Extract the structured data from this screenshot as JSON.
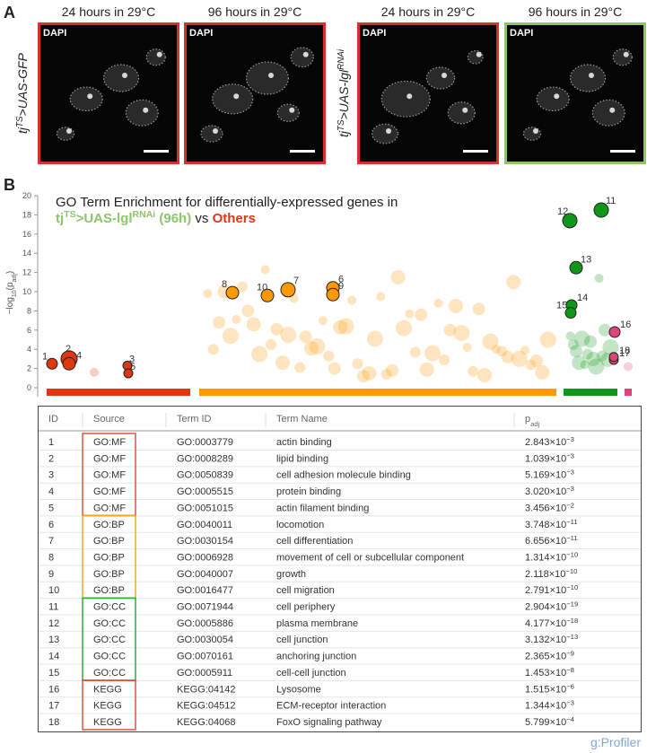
{
  "panel_a": {
    "label": "A",
    "column_headers": [
      "24 hours in 29°C",
      "96 hours in 29°C",
      "24 hours in 29°C",
      "96 hours in 29°C"
    ],
    "image_label": "DAPI",
    "row_labels": [
      {
        "base": "tj",
        "sup": "TS",
        "rest": ">UAS-GFP"
      },
      {
        "base": "tj",
        "sup": "TS",
        "rest": ">UAS-lgl",
        "sup2": "RNAi"
      }
    ]
  },
  "panel_b_label": "B",
  "chart_data": {
    "type": "scatter",
    "title": "GO Term Enrichment for differentially-expressed genes in",
    "subtitle": {
      "group": "tj",
      "group_sup": "TS",
      "group_rest": ">UAS-lgl",
      "group_sup2": "RNAi",
      "group_tail": " (96h)",
      "vs": " vs ",
      "others": "Others"
    },
    "y_label": {
      "main": "−log",
      "sub": "10",
      "open": "(p",
      "sub2": "adj",
      "close": ")"
    },
    "ylim": [
      0,
      20
    ],
    "yticks": [
      0,
      2,
      4,
      6,
      8,
      10,
      12,
      14,
      16,
      18,
      20
    ],
    "groups": [
      {
        "color": "#dc3912",
        "highlight_values": [
          2.5,
          3.0,
          2.3,
          2.5,
          1.5
        ],
        "values": [
          1.6
        ]
      },
      {
        "color": "#ff9900",
        "highlight_values": [
          10.4,
          10.2,
          9.9,
          9.7,
          9.6
        ],
        "values": [
          9.8,
          7.6,
          5.5,
          3.8,
          1.5,
          7.1,
          6,
          4.3,
          2.4,
          11.5,
          12.3,
          8.2,
          6.4,
          4,
          1.9,
          9.3,
          3.2,
          5.1,
          10.5,
          8.5,
          7,
          2.8,
          6.2,
          4.5,
          1.3,
          9.1,
          6.8,
          3.6,
          2.1,
          11,
          9.5,
          8,
          5.7,
          3.3,
          1.6,
          7.7,
          6.1,
          4.8,
          2.5,
          10,
          8.8,
          5.3,
          3,
          1.4,
          6.6,
          4.2,
          2,
          5,
          3.7,
          2.6,
          4,
          1.2,
          5.4,
          2.9,
          4.1,
          3.9,
          1.8,
          3.5,
          1.7,
          6.3
        ]
      },
      {
        "color": "#109618",
        "highlight_values": [
          18.5,
          17.4,
          12.5,
          8.6,
          7.8
        ],
        "values": [
          5.4,
          4.8,
          4.2,
          3.5,
          2.9,
          2.4,
          6,
          5.1,
          3.3,
          2.6,
          11.4,
          3.8,
          2.2,
          4.5,
          3
        ]
      },
      {
        "color": "#dd4477",
        "highlight_values": [
          5.8,
          2.9,
          3.2
        ],
        "values": [
          2.2
        ]
      }
    ]
  },
  "table": {
    "header": [
      "ID",
      "Source",
      "Term ID",
      "Term Name"
    ],
    "padj_header": {
      "main": "p",
      "sub": "adj"
    },
    "rows": [
      [
        "1",
        "GO:MF",
        "GO:0003779",
        "actin binding",
        "2.843×10",
        "−3"
      ],
      [
        "2",
        "GO:MF",
        "GO:0008289",
        "lipid binding",
        "1.039×10",
        "−3"
      ],
      [
        "3",
        "GO:MF",
        "GO:0050839",
        "cell adhesion molecule binding",
        "5.169×10",
        "−3"
      ],
      [
        "4",
        "GO:MF",
        "GO:0005515",
        "protein binding",
        "3.020×10",
        "−3"
      ],
      [
        "5",
        "GO:MF",
        "GO:0051015",
        "actin filament binding",
        "3.456×10",
        "−2"
      ],
      [
        "6",
        "GO:BP",
        "GO:0040011",
        "locomotion",
        "3.748×10",
        "−11"
      ],
      [
        "7",
        "GO:BP",
        "GO:0030154",
        "cell differentiation",
        "6.656×10",
        "−11"
      ],
      [
        "8",
        "GO:BP",
        "GO:0006928",
        "movement of cell or subcellular component",
        "1.314×10",
        "−10"
      ],
      [
        "9",
        "GO:BP",
        "GO:0040007",
        "growth",
        "2.118×10",
        "−10"
      ],
      [
        "10",
        "GO:BP",
        "GO:0016477",
        "cell migration",
        "2.791×10",
        "−10"
      ],
      [
        "11",
        "GO:CC",
        "GO:0071944",
        "cell periphery",
        "2.904×10",
        "−19"
      ],
      [
        "12",
        "GO:CC",
        "GO:0005886",
        "plasma membrane",
        "4.177×10",
        "−18"
      ],
      [
        "13",
        "GO:CC",
        "GO:0030054",
        "cell junction",
        "3.132×10",
        "−13"
      ],
      [
        "14",
        "GO:CC",
        "GO:0070161",
        "anchoring junction",
        "2.365×10",
        "−9"
      ],
      [
        "15",
        "GO:CC",
        "GO:0005911",
        "cell-cell junction",
        "1.453×10",
        "−8"
      ],
      [
        "16",
        "KEGG",
        "KEGG:04142",
        "Lysosome",
        "1.515×10",
        "−6"
      ],
      [
        "17",
        "KEGG",
        "KEGG:04512",
        "ECM-receptor interaction",
        "1.344×10",
        "−3"
      ],
      [
        "18",
        "KEGG",
        "KEGG:04068",
        "FoxO signaling pathway",
        "5.799×10",
        "−4"
      ]
    ]
  },
  "footer": "g:Profiler"
}
